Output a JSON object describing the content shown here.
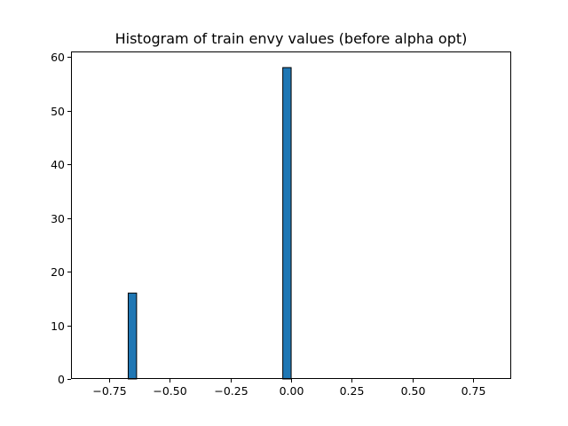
{
  "chart_data": {
    "type": "bar",
    "title": "Histogram of train envy values (before alpha opt)",
    "xlabel": "",
    "ylabel": "",
    "xlim": [
      -0.907,
      0.907
    ],
    "ylim": [
      0,
      61
    ],
    "bar_width": 0.0345,
    "bars": [
      {
        "x": -0.654,
        "value": 16
      },
      {
        "x": -0.017,
        "value": 58
      }
    ],
    "x_ticks": [
      -0.75,
      -0.5,
      -0.25,
      0.0,
      0.25,
      0.5,
      0.75
    ],
    "x_tick_labels": [
      "−0.75",
      "−0.50",
      "−0.25",
      "0.00",
      "0.25",
      "0.50",
      "0.75"
    ],
    "y_ticks": [
      0,
      10,
      20,
      30,
      40,
      50,
      60
    ],
    "y_tick_labels": [
      "0",
      "10",
      "20",
      "30",
      "40",
      "50",
      "60"
    ],
    "grid": false,
    "bar_color": "#1f77b4",
    "edge_color": "#000000"
  }
}
